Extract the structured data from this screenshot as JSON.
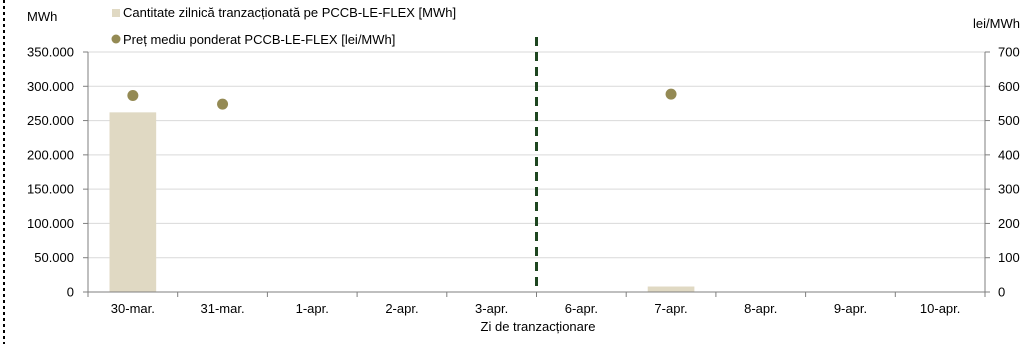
{
  "chart_data": {
    "type": "bar",
    "categories": [
      "30-mar.",
      "31-mar.",
      "1-apr.",
      "2-apr.",
      "3-apr.",
      "6-apr.",
      "7-apr.",
      "8-apr.",
      "9-apr.",
      "10-apr."
    ],
    "series": [
      {
        "name": "Cantitate zilnică tranzacționată pe PCCB-LE-FLEX [MWh]",
        "type": "bar",
        "axis": "left",
        "color": "#e0d9c3",
        "values": [
          262000,
          0,
          0,
          0,
          0,
          0,
          8000,
          0,
          0,
          0
        ]
      },
      {
        "name": "Preț mediu ponderat PCCB-LE-FLEX [lei/MWh]",
        "type": "scatter",
        "axis": "right",
        "color": "#948a54",
        "values": [
          573,
          548,
          null,
          null,
          null,
          null,
          577,
          null,
          null,
          null
        ]
      }
    ],
    "y_left": {
      "unit": "MWh",
      "ylim": [
        0,
        350000
      ],
      "ticks": [
        0,
        50000,
        100000,
        150000,
        200000,
        250000,
        300000,
        350000
      ],
      "tick_labels": [
        "0",
        "50.000",
        "100.000",
        "150.000",
        "200.000",
        "250.000",
        "300.000",
        "350.000"
      ]
    },
    "y_right": {
      "unit": "lei/MWh",
      "ylim": [
        0,
        700
      ],
      "ticks": [
        0,
        100,
        200,
        300,
        400,
        500,
        600,
        700
      ],
      "tick_labels": [
        "0",
        "100",
        "200",
        "300",
        "400",
        "500",
        "600",
        "700"
      ]
    },
    "xlabel": "Zi de tranzacționare",
    "divider_after_category": "3-apr.",
    "divider_color": "#1e4620",
    "grid": true,
    "legend_position": "top-left"
  }
}
